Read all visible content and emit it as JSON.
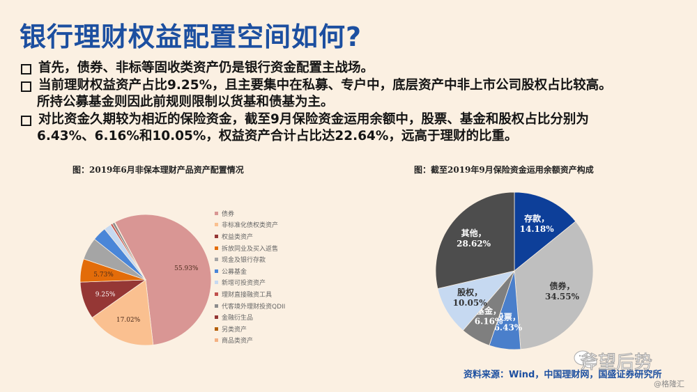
{
  "title": "银行理财权益配置空间如何?",
  "bullets": [
    {
      "lines": [
        "首先，债券、非标等固收类资产仍是银行资金配置主战场。"
      ]
    },
    {
      "lines": [
        "当前理财权益资产占比9.25%，且主要集中在私募、专户中，底层资产中非上市公司股权占比较高。",
        "所持公募基金则因此前规则限制以货基和债基为主。"
      ]
    },
    {
      "lines": [
        "对比资金久期较为相近的保险资金，截至9月保险资金运用余额中，股票、基金和股权占比分别为",
        "6.43%、6.16%和10.05%，权益资产合计占比达22.64%，远高于理财的比重。"
      ]
    }
  ],
  "chart_data": [
    {
      "type": "pie",
      "title": "图：2019年6月非保本理财产品资产配置情况",
      "legend_position": "right",
      "categories": [
        "债券",
        "非标准化债权类资产",
        "权益类资产",
        "拆放同业及买入返售",
        "现金及银行存款",
        "公募基金",
        "新增可投资资产",
        "理财直接融资工具",
        "代客境外理财投资QDII",
        "金融衍生品",
        "另类资产",
        "商品类资产"
      ],
      "values": [
        55.93,
        17.02,
        9.25,
        5.73,
        5.5,
        3.5,
        1.8,
        0.5,
        0.6,
        0.05,
        0.05,
        0.02
      ],
      "data_labels": [
        "55.93%",
        "17.02%",
        "9.25%",
        "5.73%",
        "",
        "",
        "",
        "",
        "",
        "",
        "",
        ""
      ],
      "colors": [
        "#d99694",
        "#fac090",
        "#953735",
        "#e36c09",
        "#a5a5a5",
        "#4a86d8",
        "#c6d9f1",
        "#c0504d",
        "#8c8c8c",
        "#943634",
        "#b45f06",
        "#f4b183"
      ]
    },
    {
      "type": "pie",
      "title": "图：截至2019年9月保险资金运用余额资产构成",
      "categories": [
        "存款",
        "债券",
        "股票",
        "基金",
        "股权",
        "其他"
      ],
      "values": [
        14.18,
        34.55,
        6.43,
        6.16,
        10.05,
        28.62
      ],
      "data_labels": [
        "存款，\n14.18%",
        "债券，\n34.55%",
        "股票，\n6.43%",
        "基金，\n6.16%",
        "股权，\n10.05%",
        "其他，\n28.62%"
      ],
      "colors": [
        "#0d3f99",
        "#bfbfbf",
        "#4a7fcb",
        "#7f7f7f",
        "#c6d9f1",
        "#4d4d4d"
      ]
    }
  ],
  "source": "资料来源：Wind，中国理财网，国盛证券研究所",
  "watermark": "斧望后势",
  "credit": "@格隆汇"
}
